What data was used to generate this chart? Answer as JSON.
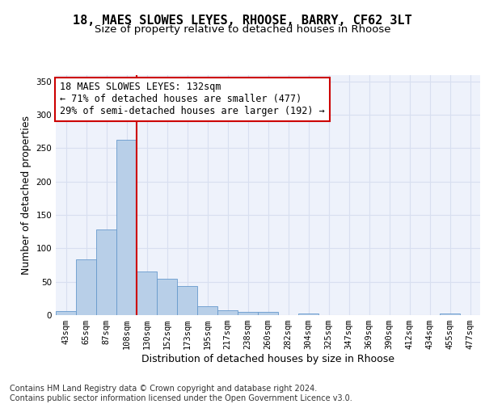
{
  "title_line1": "18, MAES SLOWES LEYES, RHOOSE, BARRY, CF62 3LT",
  "title_line2": "Size of property relative to detached houses in Rhoose",
  "xlabel": "Distribution of detached houses by size in Rhoose",
  "ylabel": "Number of detached properties",
  "categories": [
    "43sqm",
    "65sqm",
    "87sqm",
    "108sqm",
    "130sqm",
    "152sqm",
    "173sqm",
    "195sqm",
    "217sqm",
    "238sqm",
    "260sqm",
    "282sqm",
    "304sqm",
    "325sqm",
    "347sqm",
    "369sqm",
    "390sqm",
    "412sqm",
    "434sqm",
    "455sqm",
    "477sqm"
  ],
  "values": [
    6,
    83,
    128,
    263,
    65,
    55,
    44,
    13,
    7,
    5,
    5,
    0,
    3,
    0,
    0,
    0,
    0,
    0,
    0,
    3,
    0
  ],
  "bar_color": "#b8cfe8",
  "bar_edge_color": "#6699cc",
  "vline_index": 3.5,
  "vline_color": "#cc0000",
  "annotation_text": "18 MAES SLOWES LEYES: 132sqm\n← 71% of detached houses are smaller (477)\n29% of semi-detached houses are larger (192) →",
  "annotation_box_color": "white",
  "annotation_box_edge_color": "#cc0000",
  "ylim": [
    0,
    360
  ],
  "yticks": [
    0,
    50,
    100,
    150,
    200,
    250,
    300,
    350
  ],
  "bg_color": "#eef2fb",
  "grid_color": "#d8dff0",
  "footer_text": "Contains HM Land Registry data © Crown copyright and database right 2024.\nContains public sector information licensed under the Open Government Licence v3.0.",
  "title_fontsize": 11,
  "subtitle_fontsize": 9.5,
  "label_fontsize": 9,
  "tick_fontsize": 7.5,
  "footer_fontsize": 7.0,
  "annot_fontsize": 8.5
}
